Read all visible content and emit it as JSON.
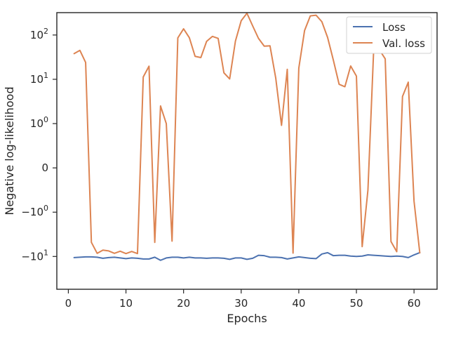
{
  "chart_data": {
    "type": "line",
    "title": "",
    "xlabel": "Epochs",
    "ylabel": "Negative log-likelihood",
    "yscale": "symlog",
    "symlog_linthresh": 1,
    "xlim": [
      -2,
      64
    ],
    "ylim": [
      -55,
      320
    ],
    "grid": false,
    "legend_position": "top-right",
    "x_ticks": [
      {
        "value": 0,
        "label": "0"
      },
      {
        "value": 10,
        "label": "10"
      },
      {
        "value": 20,
        "label": "20"
      },
      {
        "value": 30,
        "label": "30"
      },
      {
        "value": 40,
        "label": "40"
      },
      {
        "value": 50,
        "label": "50"
      },
      {
        "value": 60,
        "label": "60"
      }
    ],
    "y_ticks": [
      {
        "value": 100,
        "base": "10",
        "exp": "2",
        "sign": ""
      },
      {
        "value": 10,
        "base": "10",
        "exp": "1",
        "sign": ""
      },
      {
        "value": 1,
        "base": "10",
        "exp": "0",
        "sign": ""
      },
      {
        "value": 0,
        "base": "0",
        "exp": "",
        "sign": ""
      },
      {
        "value": -1,
        "base": "10",
        "exp": "0",
        "sign": "−"
      },
      {
        "value": -10,
        "base": "10",
        "exp": "1",
        "sign": "−"
      }
    ],
    "x": [
      1,
      2,
      3,
      4,
      5,
      6,
      7,
      8,
      9,
      10,
      11,
      12,
      13,
      14,
      15,
      16,
      17,
      18,
      19,
      20,
      21,
      22,
      23,
      24,
      25,
      26,
      27,
      28,
      29,
      30,
      31,
      32,
      33,
      34,
      35,
      36,
      37,
      38,
      39,
      40,
      41,
      42,
      43,
      44,
      45,
      46,
      47,
      48,
      49,
      50,
      51,
      52,
      53,
      54,
      55,
      56,
      57,
      58,
      59,
      60,
      61
    ],
    "series": [
      {
        "name": "Loss",
        "color": "#4c72b0",
        "values": [
          -10.6,
          -10.4,
          -10.2,
          -10.2,
          -10.4,
          -11.0,
          -10.6,
          -10.4,
          -10.8,
          -11.2,
          -10.8,
          -11.0,
          -11.4,
          -11.4,
          -10.4,
          -12.2,
          -10.8,
          -10.4,
          -10.4,
          -10.8,
          -10.4,
          -10.8,
          -10.8,
          -11.0,
          -10.8,
          -10.8,
          -11.0,
          -11.6,
          -10.8,
          -10.8,
          -11.6,
          -11.0,
          -9.4,
          -9.6,
          -10.4,
          -10.4,
          -10.6,
          -11.4,
          -10.8,
          -10.2,
          -10.6,
          -11.0,
          -11.2,
          -8.8,
          -8.2,
          -9.6,
          -9.4,
          -9.4,
          -9.8,
          -10.0,
          -9.8,
          -9.2,
          -9.4,
          -9.6,
          -9.8,
          -10.0,
          -9.8,
          -10.0,
          -10.6,
          -9.2,
          -8.2
        ]
      },
      {
        "name": "Val. loss",
        "color": "#dd8452",
        "values": [
          38,
          45,
          24,
          -4.8,
          -8.5,
          -7.2,
          -7.5,
          -8.5,
          -7.6,
          -8.6,
          -7.7,
          -8.6,
          11.3,
          19.8,
          -4.8,
          2.5,
          1.0,
          -4.5,
          86,
          138,
          87,
          33,
          31,
          72,
          93,
          84,
          14,
          10.2,
          73,
          210,
          310,
          160,
          84,
          56,
          57,
          10.6,
          0.96,
          16.8,
          -8.4,
          17.9,
          126,
          270,
          280,
          200,
          88,
          27,
          7.7,
          6.8,
          20,
          11.8,
          -6.0,
          -0.5,
          48,
          46,
          29,
          -4.6,
          -7.8,
          4.1,
          8.6,
          -0.75,
          -8.3
        ]
      }
    ]
  }
}
